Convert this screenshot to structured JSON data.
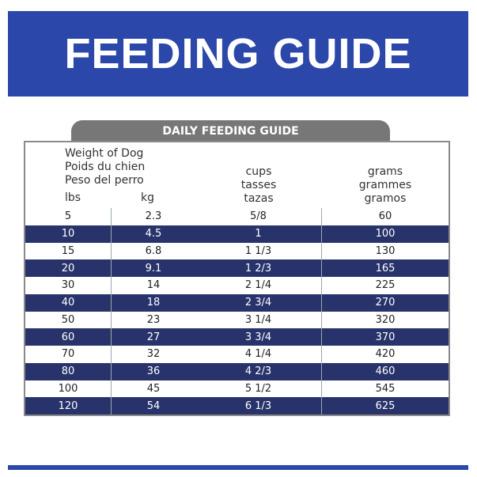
{
  "header": {
    "title": "FEEDING GUIDE"
  },
  "table": {
    "title": "DAILY FEEDING GUIDE",
    "weight_header": [
      "Weight of Dog",
      "Poids du chien",
      "Peso del perro"
    ],
    "lbs_header": "lbs",
    "kg_header": "kg",
    "cups_header": [
      "cups",
      "tasses",
      "tazas"
    ],
    "grams_header": [
      "grams",
      "grammes",
      "gramos"
    ],
    "rows": [
      [
        "5",
        "2.3",
        "5/8",
        "60"
      ],
      [
        "10",
        "4.5",
        "1",
        "100"
      ],
      [
        "15",
        "6.8",
        "1 1/3",
        "130"
      ],
      [
        "20",
        "9.1",
        "1 2/3",
        "165"
      ],
      [
        "30",
        "14",
        "2 1/4",
        "225"
      ],
      [
        "40",
        "18",
        "2 3/4",
        "270"
      ],
      [
        "50",
        "23",
        "3 1/4",
        "320"
      ],
      [
        "60",
        "27",
        "3 3/4",
        "370"
      ],
      [
        "70",
        "32",
        "4 1/4",
        "420"
      ],
      [
        "80",
        "36",
        "4 2/3",
        "460"
      ],
      [
        "100",
        "45",
        "5 1/2",
        "545"
      ],
      [
        "120",
        "54",
        "6 1/3",
        "625"
      ]
    ]
  }
}
